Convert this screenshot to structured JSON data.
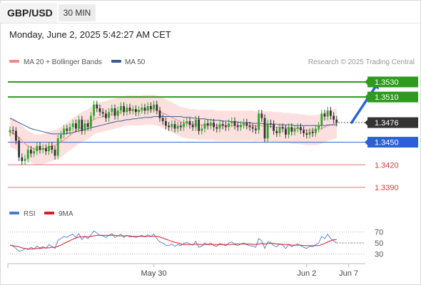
{
  "header": {
    "symbol": "GBP/USD",
    "timeframe": "30 MIN",
    "datetime": "Monday, June 2, 2025 5:42:27 AM CET"
  },
  "credit": "Research © 2025 Trading Central",
  "chart_data": [
    {
      "type": "candlestick",
      "title": "GBP/USD",
      "legend": [
        {
          "name": "MA 20 + Bollinger Bands",
          "color": "#f08a8a"
        },
        {
          "name": "MA 50",
          "color": "#3a5a98"
        }
      ],
      "legend_placement": "top-left",
      "grid": false,
      "ylim": [
        1.3372,
        1.3548
      ],
      "x_ticks": [
        {
          "label": "May 30",
          "index": 48
        },
        {
          "label": "Jun 2",
          "index": 99
        },
        {
          "label": "Jun 7",
          "index": 113
        }
      ],
      "price_levels": [
        {
          "label": "1.3530",
          "value": 1.353,
          "color": "#2e9a1e",
          "style": "resistance"
        },
        {
          "label": "1.3510",
          "value": 1.351,
          "color": "#2e9a1e",
          "style": "resistance"
        },
        {
          "label": "1.3476",
          "value": 1.3476,
          "color": "#333333",
          "style": "current"
        },
        {
          "label": "1.3450",
          "value": 1.345,
          "color": "#2a62d6",
          "style": "pivot"
        },
        {
          "label": "1.3420",
          "value": 1.342,
          "color": "#d23c3c",
          "style": "support"
        },
        {
          "label": "1.3390",
          "value": 1.339,
          "color": "#d23c3c",
          "style": "support"
        }
      ],
      "arrow": {
        "from": [
          114,
          1.3476
        ],
        "to": [
          123,
          1.353
        ],
        "color": "#2a62d6"
      },
      "close": [
        1.3466,
        1.3465,
        1.3452,
        1.343,
        1.3425,
        1.3428,
        1.344,
        1.3435,
        1.3438,
        1.3445,
        1.344,
        1.3442,
        1.3438,
        1.3445,
        1.344,
        1.3432,
        1.3455,
        1.346,
        1.3468,
        1.3465,
        1.347,
        1.3475,
        1.3468,
        1.348,
        1.3465,
        1.3475,
        1.347,
        1.3485,
        1.35,
        1.3495,
        1.349,
        1.3488,
        1.3482,
        1.349,
        1.3495,
        1.3485,
        1.3492,
        1.3498,
        1.349,
        1.3496,
        1.3492,
        1.3494,
        1.349,
        1.3493,
        1.3496,
        1.3492,
        1.3498,
        1.3494,
        1.35,
        1.3492,
        1.3482,
        1.3478,
        1.3472,
        1.347,
        1.3474,
        1.3468,
        1.3472,
        1.347,
        1.3475,
        1.3478,
        1.3473,
        1.347,
        1.348,
        1.3465,
        1.3468,
        1.3475,
        1.3472,
        1.3476,
        1.347,
        1.3468,
        1.3474,
        1.3472,
        1.347,
        1.3475,
        1.3478,
        1.3472,
        1.347,
        1.3473,
        1.3476,
        1.3472,
        1.347,
        1.3468,
        1.3466,
        1.3488,
        1.3482,
        1.3455,
        1.3475,
        1.3474,
        1.3465,
        1.3462,
        1.347,
        1.3468,
        1.346,
        1.347,
        1.3464,
        1.3468,
        1.347,
        1.3466,
        1.3462,
        1.346,
        1.3464,
        1.3462,
        1.3468,
        1.3472,
        1.3488,
        1.3484,
        1.3492,
        1.3485,
        1.348,
        1.3476
      ],
      "ma20": [
        1.3463,
        1.3462,
        1.346,
        1.3456,
        1.3452,
        1.3448,
        1.3445,
        1.3443,
        1.3441,
        1.344,
        1.344,
        1.3441,
        1.3442,
        1.3444,
        1.3445,
        1.3446,
        1.3448,
        1.345,
        1.3453,
        1.3456,
        1.3459,
        1.3462,
        1.3465,
        1.3468,
        1.347,
        1.3472,
        1.3474,
        1.3477,
        1.348,
        1.3482,
        1.3483,
        1.3484,
        1.3485,
        1.3486,
        1.3487,
        1.3488,
        1.3489,
        1.349,
        1.3491,
        1.3492,
        1.3492,
        1.3492,
        1.3492,
        1.3492,
        1.3492,
        1.3493,
        1.3493,
        1.3493,
        1.3493,
        1.3492,
        1.3491,
        1.3489,
        1.3487,
        1.3485,
        1.3483,
        1.3481,
        1.3479,
        1.3477,
        1.3476,
        1.3475,
        1.3474,
        1.3474,
        1.3474,
        1.3473,
        1.3473,
        1.3473,
        1.3473,
        1.3473,
        1.3473,
        1.3472,
        1.3472,
        1.3472,
        1.3472,
        1.3472,
        1.3472,
        1.3472,
        1.3472,
        1.3472,
        1.3472,
        1.3472,
        1.3472,
        1.3472,
        1.3471,
        1.3472,
        1.3472,
        1.3471,
        1.3471,
        1.3471,
        1.347,
        1.347,
        1.347,
        1.3469,
        1.3469,
        1.3469,
        1.3468,
        1.3468,
        1.3468,
        1.3467,
        1.3467,
        1.3466,
        1.3466,
        1.3466,
        1.3466,
        1.3467,
        1.3468,
        1.347,
        1.3472,
        1.3473,
        1.3474,
        1.3475
      ],
      "ma50": [
        1.3482,
        1.348,
        1.3478,
        1.3476,
        1.3474,
        1.3472,
        1.347,
        1.3468,
        1.3467,
        1.3466,
        1.3465,
        1.3464,
        1.3463,
        1.3462,
        1.3461,
        1.3461,
        1.3461,
        1.3461,
        1.3461,
        1.3462,
        1.3462,
        1.3463,
        1.3464,
        1.3465,
        1.3466,
        1.3467,
        1.3468,
        1.3469,
        1.347,
        1.3471,
        1.3472,
        1.3473,
        1.3474,
        1.3475,
        1.3476,
        1.3477,
        1.3478,
        1.3478,
        1.3479,
        1.348,
        1.348,
        1.3481,
        1.3481,
        1.3482,
        1.3482,
        1.3483,
        1.3483,
        1.3483,
        1.3484,
        1.3484,
        1.3484,
        1.3484,
        1.3484,
        1.3484,
        1.3484,
        1.3484,
        1.3484,
        1.3484,
        1.3483,
        1.3483,
        1.3483,
        1.3482,
        1.3482,
        1.3481,
        1.3481,
        1.3481,
        1.348,
        1.348,
        1.3479,
        1.3479,
        1.3479,
        1.3478,
        1.3478,
        1.3478,
        1.3477,
        1.3477,
        1.3477,
        1.3476,
        1.3476,
        1.3476,
        1.3476,
        1.3475,
        1.3475,
        1.3475,
        1.3475,
        1.3474,
        1.3474,
        1.3474,
        1.3474,
        1.3474,
        1.3473,
        1.3473,
        1.3473,
        1.3473,
        1.3473,
        1.3472,
        1.3472,
        1.3472,
        1.3472,
        1.3472,
        1.3472,
        1.3472,
        1.3472,
        1.3472,
        1.3472,
        1.3472,
        1.3473,
        1.3473,
        1.3473,
        1.3473
      ],
      "bb_width": 0.002
    },
    {
      "type": "line",
      "legend": [
        {
          "name": "RSI",
          "color": "#4a7bd0"
        },
        {
          "name": "9MA",
          "color": "#d42020"
        }
      ],
      "ylim": [
        20,
        80
      ],
      "y_ticks": [
        70,
        50,
        30
      ],
      "rsi": [
        46,
        44,
        40,
        35,
        36,
        40,
        38,
        42,
        39,
        44,
        41,
        43,
        40,
        47,
        44,
        40,
        55,
        58,
        62,
        60,
        64,
        66,
        60,
        67,
        56,
        62,
        58,
        65,
        72,
        68,
        64,
        63,
        60,
        64,
        67,
        60,
        63,
        66,
        60,
        64,
        61,
        62,
        60,
        62,
        64,
        61,
        65,
        62,
        66,
        58,
        52,
        50,
        46,
        45,
        48,
        44,
        47,
        45,
        49,
        51,
        48,
        46,
        53,
        42,
        44,
        50,
        47,
        50,
        45,
        44,
        49,
        47,
        45,
        50,
        52,
        47,
        45,
        48,
        50,
        47,
        45,
        44,
        42,
        58,
        54,
        40,
        52,
        51,
        45,
        43,
        48,
        46,
        40,
        47,
        43,
        46,
        48,
        45,
        42,
        40,
        44,
        43,
        47,
        50,
        62,
        58,
        66,
        58,
        54,
        50
      ],
      "ma9": [
        46,
        45,
        44,
        43,
        41,
        40,
        39,
        39,
        39,
        40,
        40,
        41,
        41,
        41,
        42,
        42,
        44,
        46,
        49,
        52,
        54,
        57,
        59,
        61,
        61,
        62,
        61,
        62,
        63,
        64,
        64,
        64,
        64,
        64,
        64,
        64,
        63,
        63,
        63,
        63,
        63,
        62,
        62,
        62,
        62,
        62,
        62,
        62,
        62,
        62,
        61,
        59,
        57,
        55,
        53,
        51,
        50,
        48,
        47,
        47,
        47,
        47,
        48,
        47,
        47,
        47,
        47,
        47,
        47,
        47,
        47,
        47,
        47,
        47,
        47,
        48,
        48,
        48,
        48,
        48,
        48,
        47,
        47,
        48,
        49,
        48,
        49,
        49,
        49,
        48,
        48,
        47,
        47,
        47,
        46,
        46,
        46,
        46,
        45,
        45,
        45,
        45,
        45,
        45,
        47,
        49,
        52,
        54,
        56,
        56
      ]
    }
  ]
}
